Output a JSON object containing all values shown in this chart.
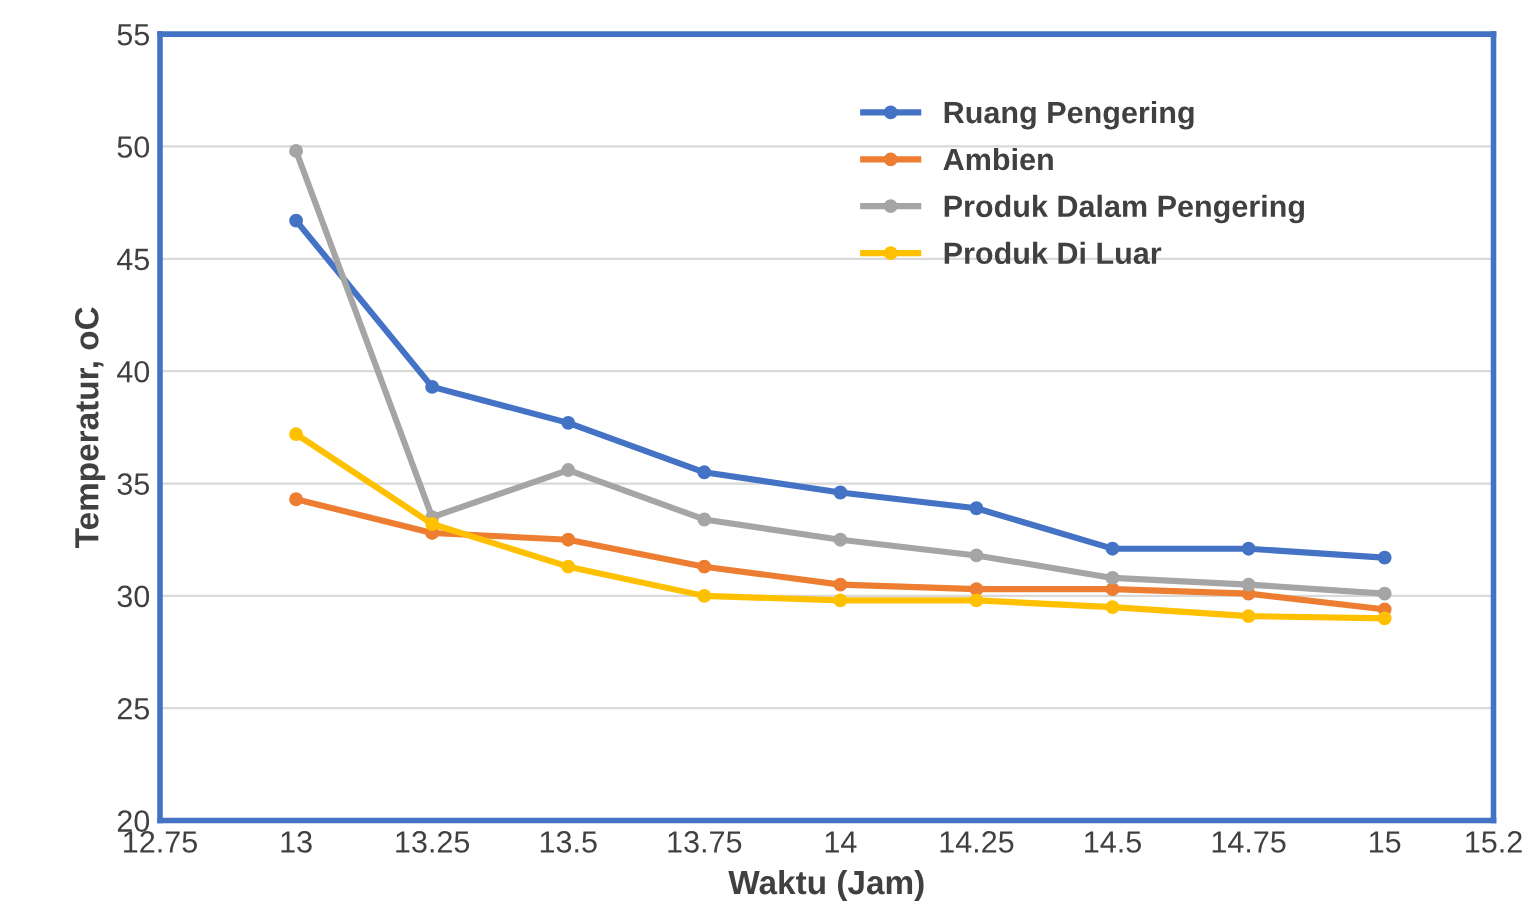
{
  "chart_data": {
    "type": "line",
    "xlabel": "Waktu (Jam)",
    "ylabel": "Temperatur, oC",
    "x": [
      13,
      13.25,
      13.5,
      13.75,
      14,
      14.25,
      14.5,
      14.75,
      15
    ],
    "series": [
      {
        "name": "Ruang Pengering",
        "color": "#4472c4",
        "values": [
          46.7,
          39.3,
          37.7,
          35.5,
          34.6,
          33.9,
          32.1,
          32.1,
          31.7
        ]
      },
      {
        "name": "Ambien",
        "color": "#ed7d31",
        "values": [
          34.3,
          32.8,
          32.5,
          31.3,
          30.5,
          30.3,
          30.3,
          30.1,
          29.4
        ]
      },
      {
        "name": "Produk Dalam Pengering",
        "color": "#a5a5a5",
        "values": [
          49.8,
          33.5,
          35.6,
          33.4,
          32.5,
          31.8,
          30.8,
          30.5,
          30.1
        ]
      },
      {
        "name": "Produk Di Luar",
        "color": "#ffc000",
        "values": [
          37.2,
          33.2,
          31.3,
          30.0,
          29.8,
          29.8,
          29.5,
          29.1,
          29.0
        ]
      }
    ],
    "xlim": [
      12.75,
      15.2
    ],
    "xticks": [
      12.75,
      13,
      13.25,
      13.5,
      13.75,
      14,
      14.25,
      14.5,
      14.75,
      15,
      15.2
    ],
    "ylim": [
      20,
      55
    ],
    "yticks": [
      20,
      25,
      30,
      35,
      40,
      45,
      50,
      55
    ],
    "grid": "y",
    "legend": "top right",
    "marker": "circle",
    "line_style": "solid"
  }
}
